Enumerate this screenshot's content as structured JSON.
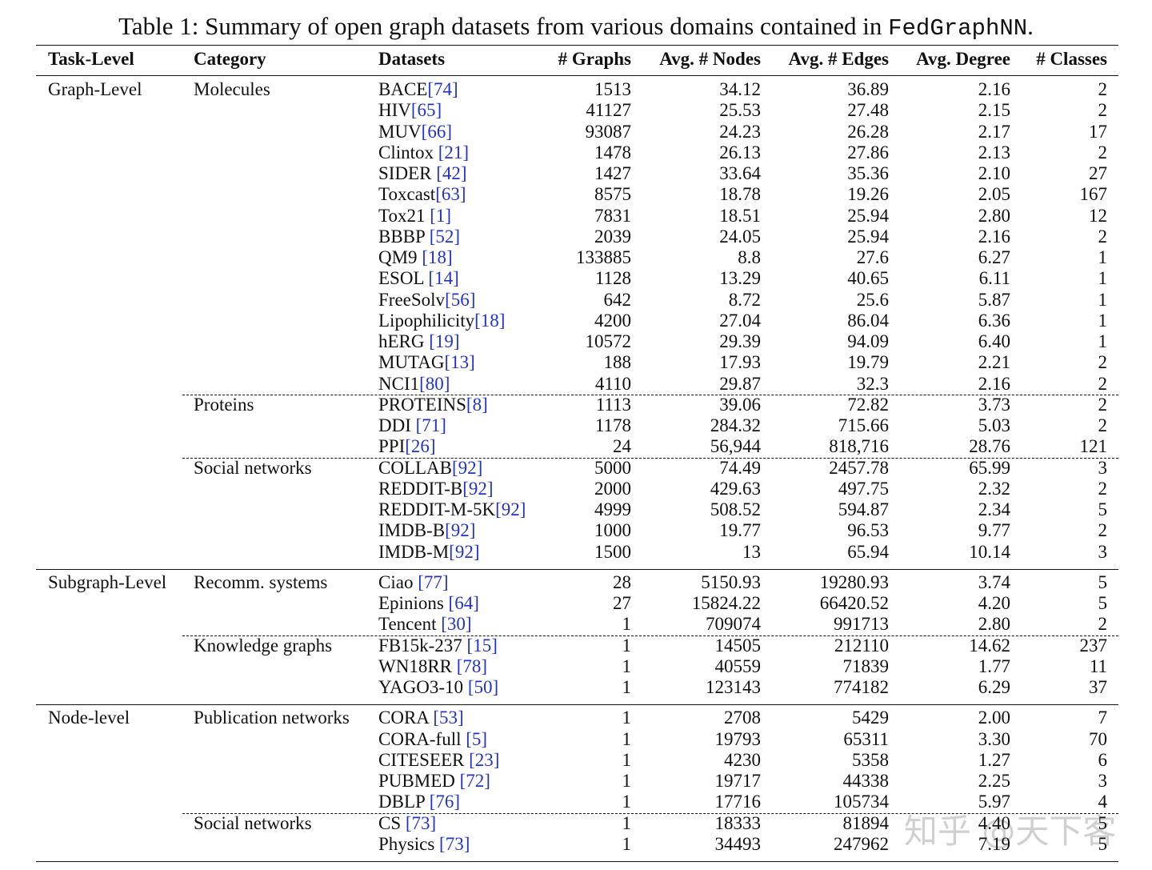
{
  "caption": {
    "text": "Table 1: Summary of open graph datasets from various domains contained in ",
    "code": "FedGraphNN",
    "end": "."
  },
  "table": {
    "headers": [
      "Task-Level",
      "Category",
      "Datasets",
      "# Graphs",
      "Avg. # Nodes",
      "Avg. # Edges",
      "Avg. Degree",
      "# Classes"
    ],
    "groups": [
      {
        "task": "Graph-Level",
        "categories": [
          {
            "name": "Molecules",
            "rows": [
              {
                "dataset": "BACE",
                "ref": "[74]",
                "values": [
                  "1513",
                  "34.12",
                  "36.89",
                  "2.16",
                  "2"
                ]
              },
              {
                "dataset": "HIV",
                "ref": "[65]",
                "values": [
                  "41127",
                  "25.53",
                  "27.48",
                  "2.15",
                  "2"
                ]
              },
              {
                "dataset": "MUV",
                "ref": "[66]",
                "values": [
                  "93087",
                  "24.23",
                  "26.28",
                  "2.17",
                  "17"
                ]
              },
              {
                "dataset": "Clintox ",
                "ref": "[21]",
                "values": [
                  "1478",
                  "26.13",
                  "27.86",
                  "2.13",
                  "2"
                ]
              },
              {
                "dataset": "SIDER ",
                "ref": "[42]",
                "values": [
                  "1427",
                  "33.64",
                  "35.36",
                  "2.10",
                  "27"
                ]
              },
              {
                "dataset": "Toxcast",
                "ref": "[63]",
                "values": [
                  "8575",
                  "18.78",
                  "19.26",
                  "2.05",
                  "167"
                ]
              },
              {
                "dataset": "Tox21 ",
                "ref": "[1]",
                "values": [
                  "7831",
                  "18.51",
                  "25.94",
                  "2.80",
                  "12"
                ]
              },
              {
                "dataset": "BBBP ",
                "ref": "[52]",
                "values": [
                  "2039",
                  "24.05",
                  "25.94",
                  "2.16",
                  "2"
                ]
              },
              {
                "dataset": "QM9 ",
                "ref": "[18]",
                "values": [
                  "133885",
                  "8.8",
                  "27.6",
                  "6.27",
                  "1"
                ]
              },
              {
                "dataset": "ESOL ",
                "ref": "[14]",
                "values": [
                  "1128",
                  "13.29",
                  "40.65",
                  "6.11",
                  "1"
                ]
              },
              {
                "dataset": "FreeSolv",
                "ref": "[56]",
                "values": [
                  "642",
                  "8.72",
                  "25.6",
                  "5.87",
                  "1"
                ]
              },
              {
                "dataset": "Lipophilicity",
                "ref": "[18]",
                "values": [
                  "4200",
                  "27.04",
                  "86.04",
                  "6.36",
                  "1"
                ]
              },
              {
                "dataset": "hERG ",
                "ref": "[19]",
                "values": [
                  "10572",
                  "29.39",
                  "94.09",
                  "6.40",
                  "1"
                ]
              },
              {
                "dataset": "MUTAG",
                "ref": "[13]",
                "values": [
                  "188",
                  "17.93",
                  "19.79",
                  "2.21",
                  "2"
                ]
              },
              {
                "dataset": "NCI1",
                "ref": "[80]",
                "values": [
                  "4110",
                  "29.87",
                  "32.3",
                  "2.16",
                  "2"
                ]
              }
            ]
          },
          {
            "name": "Proteins",
            "rows": [
              {
                "dataset": "PROTEINS",
                "ref": "[8]",
                "values": [
                  "1113",
                  "39.06",
                  "72.82",
                  "3.73",
                  "2"
                ]
              },
              {
                "dataset": "DDI ",
                "ref": "[71]",
                "values": [
                  "1178",
                  "284.32",
                  "715.66",
                  "5.03",
                  "2"
                ]
              },
              {
                "dataset": "PPI",
                "ref": "[26]",
                "values": [
                  "24",
                  "56,944",
                  "818,716",
                  "28.76",
                  "121"
                ]
              }
            ]
          },
          {
            "name": "Social networks",
            "rows": [
              {
                "dataset": "COLLAB",
                "ref": "[92]",
                "values": [
                  "5000",
                  "74.49",
                  "2457.78",
                  "65.99",
                  "3"
                ]
              },
              {
                "dataset": "REDDIT-B",
                "ref": "[92]",
                "values": [
                  "2000",
                  "429.63",
                  "497.75",
                  "2.32",
                  "2"
                ]
              },
              {
                "dataset": "REDDIT-M-5K",
                "ref": "[92]",
                "values": [
                  "4999",
                  "508.52",
                  "594.87",
                  "2.34",
                  "5"
                ]
              },
              {
                "dataset": "IMDB-B",
                "ref": "[92]",
                "values": [
                  "1000",
                  "19.77",
                  "96.53",
                  "9.77",
                  "2"
                ]
              },
              {
                "dataset": "IMDB-M",
                "ref": "[92]",
                "values": [
                  "1500",
                  "13",
                  "65.94",
                  "10.14",
                  "3"
                ]
              }
            ]
          }
        ]
      },
      {
        "task": "Subgraph-Level",
        "categories": [
          {
            "name": "Recomm. systems",
            "rows": [
              {
                "dataset": "Ciao ",
                "ref": "[77]",
                "values": [
                  "28",
                  "5150.93",
                  "19280.93",
                  "3.74",
                  "5"
                ]
              },
              {
                "dataset": "Epinions ",
                "ref": "[64]",
                "values": [
                  "27",
                  "15824.22",
                  "66420.52",
                  "4.20",
                  "5"
                ]
              },
              {
                "dataset": "Tencent ",
                "ref": "[30]",
                "values": [
                  "1",
                  "709074",
                  "991713",
                  "2.80",
                  "2"
                ]
              }
            ]
          },
          {
            "name": "Knowledge graphs",
            "rows": [
              {
                "dataset": "FB15k-237 ",
                "ref": "[15]",
                "values": [
                  "1",
                  "14505",
                  "212110",
                  "14.62",
                  "237"
                ]
              },
              {
                "dataset": "WN18RR ",
                "ref": "[78]",
                "values": [
                  "1",
                  "40559",
                  "71839",
                  "1.77",
                  "11"
                ]
              },
              {
                "dataset": "YAGO3-10 ",
                "ref": "[50]",
                "values": [
                  "1",
                  "123143",
                  "774182",
                  "6.29",
                  "37"
                ]
              }
            ]
          }
        ]
      },
      {
        "task": "Node-level",
        "categories": [
          {
            "name": "Publication networks",
            "rows": [
              {
                "dataset": "CORA ",
                "ref": "[53]",
                "values": [
                  "1",
                  "2708",
                  "5429",
                  "2.00",
                  "7"
                ]
              },
              {
                "dataset": "CORA-full ",
                "ref": "[5]",
                "values": [
                  "1",
                  "19793",
                  "65311",
                  "3.30",
                  "70"
                ]
              },
              {
                "dataset": "CITESEER ",
                "ref": "[23]",
                "values": [
                  "1",
                  "4230",
                  "5358",
                  "1.27",
                  "6"
                ]
              },
              {
                "dataset": "PUBMED ",
                "ref": "[72]",
                "values": [
                  "1",
                  "19717",
                  "44338",
                  "2.25",
                  "3"
                ]
              },
              {
                "dataset": "DBLP ",
                "ref": "[76]",
                "values": [
                  "1",
                  "17716",
                  "105734",
                  "5.97",
                  "4"
                ]
              }
            ]
          },
          {
            "name": "Social networks",
            "rows": [
              {
                "dataset": "CS ",
                "ref": "[73]",
                "values": [
                  "1",
                  "18333",
                  "81894",
                  "4.40",
                  "5"
                ]
              },
              {
                "dataset": "Physics ",
                "ref": "[73]",
                "values": [
                  "1",
                  "34493",
                  "247962",
                  "7.19",
                  "5"
                ]
              }
            ]
          }
        ]
      }
    ]
  },
  "watermark": "知乎 @天下客"
}
